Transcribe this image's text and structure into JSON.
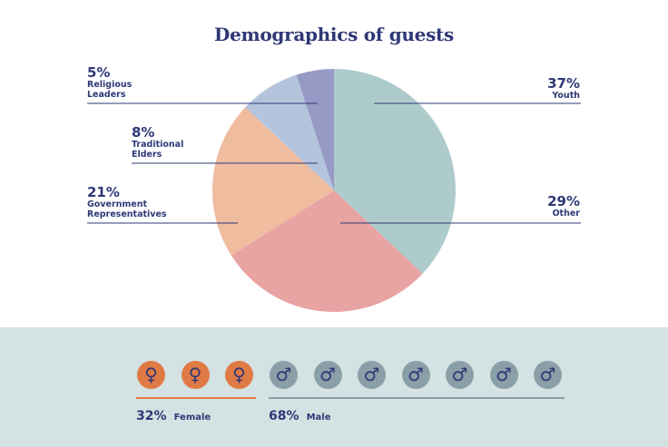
{
  "title": "Demographics of guests",
  "chart_data": {
    "type": "pie",
    "title": "Demographics of guests",
    "slices": [
      {
        "label": "Youth",
        "value": 37,
        "pct_label": "37%",
        "color": "#aecbcc"
      },
      {
        "label": "Other",
        "value": 29,
        "pct_label": "29%",
        "color": "#e8a3a3"
      },
      {
        "label": "Government Representatives",
        "label_lines": [
          "Government",
          "Representatives"
        ],
        "value": 21,
        "pct_label": "21%",
        "color": "#efbca0"
      },
      {
        "label": "Traditional Elders",
        "label_lines": [
          "Traditional",
          "Elders"
        ],
        "value": 8,
        "pct_label": "8%",
        "color": "#b5c4dd"
      },
      {
        "label": "Religious Leaders",
        "label_lines": [
          "Religious",
          "Leaders"
        ],
        "value": 5,
        "pct_label": "5%",
        "color": "#979ac4"
      }
    ]
  },
  "gender": {
    "female": {
      "pct_label": "32%",
      "label": "Female",
      "value": 32,
      "icon_count": 3,
      "icon": "female-symbol-icon",
      "glyph": "♀",
      "color": "#e07a45"
    },
    "male": {
      "pct_label": "68%",
      "label": "Male",
      "value": 68,
      "icon_count": 7,
      "icon": "male-symbol-icon",
      "glyph": "♂",
      "color": "#8a9fa8"
    }
  },
  "colors": {
    "text": "#2e3876",
    "footer_bg": "#d4e2e3"
  }
}
